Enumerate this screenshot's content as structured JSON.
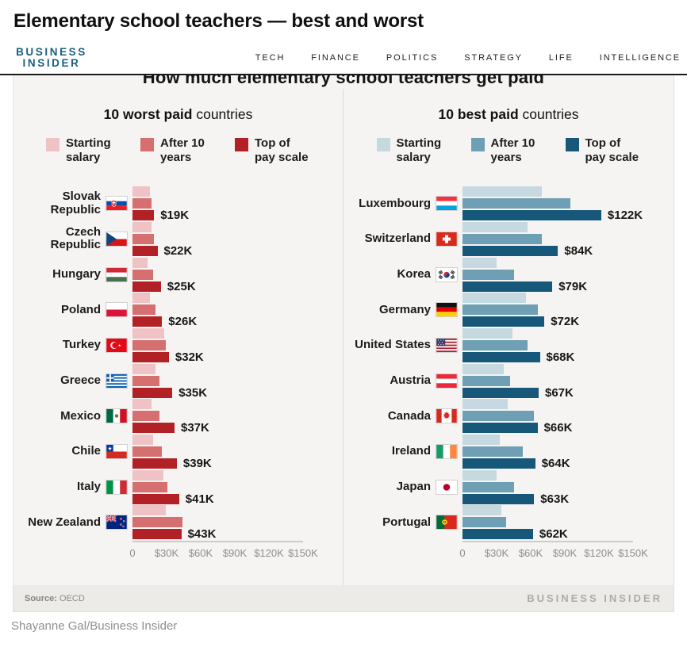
{
  "page": {
    "title": "Elementary school teachers — best and worst",
    "credit": "Shayanne Gal/Business Insider"
  },
  "brand": {
    "logo_line1": "BUSINESS",
    "logo_line2": "INSIDER",
    "logo_color": "#1a5f7e"
  },
  "nav": {
    "items": [
      "TECH",
      "FINANCE",
      "POLITICS",
      "STRATEGY",
      "LIFE",
      "INTELLIGENCE"
    ]
  },
  "chart_data": {
    "type": "bar",
    "orientation": "horizontal",
    "title": "How much elementary school teachers get paid",
    "series_labels": [
      "Starting salary",
      "After 10 years",
      "Top of pay scale"
    ],
    "axis": {
      "ticks": [
        "0",
        "$30K",
        "$60K",
        "$90K",
        "$120K",
        "$150K"
      ],
      "min_usd": 0,
      "max_usd": 150000,
      "unit": "USD annual salary, thousands"
    },
    "source_label": "Source:",
    "source": "OECD",
    "watermark": "BUSINESS INSIDER",
    "panels": [
      {
        "title_prefix": "10 ",
        "title_bold": "worst paid",
        "title_rest": " countries",
        "colors": [
          "#efc3c6",
          "#d66f70",
          "#b22126"
        ],
        "rows": [
          {
            "country": "Slovak Republic",
            "flag": "slovakia",
            "values_usd_k": [
              15,
              17,
              19
            ],
            "label": "$19K"
          },
          {
            "country": "Czech Republic",
            "flag": "czechia",
            "values_usd_k": [
              17,
              19,
              22
            ],
            "label": "$22K"
          },
          {
            "country": "Hungary",
            "flag": "hungary",
            "values_usd_k": [
              13,
              18,
              25
            ],
            "label": "$25K"
          },
          {
            "country": "Poland",
            "flag": "poland",
            "values_usd_k": [
              15,
              20,
              26
            ],
            "label": "$26K"
          },
          {
            "country": "Turkey",
            "flag": "turkey",
            "values_usd_k": [
              28,
              29,
              32
            ],
            "label": "$32K"
          },
          {
            "country": "Greece",
            "flag": "greece",
            "values_usd_k": [
              20,
              24,
              35
            ],
            "label": "$35K"
          },
          {
            "country": "Mexico",
            "flag": "mexico",
            "values_usd_k": [
              17,
              24,
              37
            ],
            "label": "$37K"
          },
          {
            "country": "Chile",
            "flag": "chile",
            "values_usd_k": [
              18,
              26,
              39
            ],
            "label": "$39K"
          },
          {
            "country": "Italy",
            "flag": "italy",
            "values_usd_k": [
              27,
              31,
              41
            ],
            "label": "$41K"
          },
          {
            "country": "New Zealand",
            "flag": "new-zealand",
            "values_usd_k": [
              29,
              44,
              43
            ],
            "label": "$43K"
          }
        ]
      },
      {
        "title_prefix": "10 ",
        "title_bold": "best paid",
        "title_rest": " countries",
        "colors": [
          "#c6d9e0",
          "#6f9fb4",
          "#17587a"
        ],
        "rows": [
          {
            "country": "Luxembourg",
            "flag": "luxembourg",
            "values_usd_k": [
              70,
              95,
              122
            ],
            "label": "$122K"
          },
          {
            "country": "Switzerland",
            "flag": "switzerland",
            "values_usd_k": [
              57,
              70,
              84
            ],
            "label": "$84K"
          },
          {
            "country": "Korea",
            "flag": "south-korea",
            "values_usd_k": [
              30,
              45,
              79
            ],
            "label": "$79K"
          },
          {
            "country": "Germany",
            "flag": "germany",
            "values_usd_k": [
              56,
              66,
              72
            ],
            "label": "$72K"
          },
          {
            "country": "United States",
            "flag": "united-states",
            "values_usd_k": [
              44,
              57,
              68
            ],
            "label": "$68K"
          },
          {
            "country": "Austria",
            "flag": "austria",
            "values_usd_k": [
              36,
              42,
              67
            ],
            "label": "$67K"
          },
          {
            "country": "Canada",
            "flag": "canada",
            "values_usd_k": [
              40,
              63,
              66
            ],
            "label": "$66K"
          },
          {
            "country": "Ireland",
            "flag": "ireland",
            "values_usd_k": [
              33,
              53,
              64
            ],
            "label": "$64K"
          },
          {
            "country": "Japan",
            "flag": "japan",
            "values_usd_k": [
              30,
              45,
              63
            ],
            "label": "$63K"
          },
          {
            "country": "Portugal",
            "flag": "portugal",
            "values_usd_k": [
              34,
              38,
              62
            ],
            "label": "$62K"
          }
        ]
      }
    ]
  }
}
